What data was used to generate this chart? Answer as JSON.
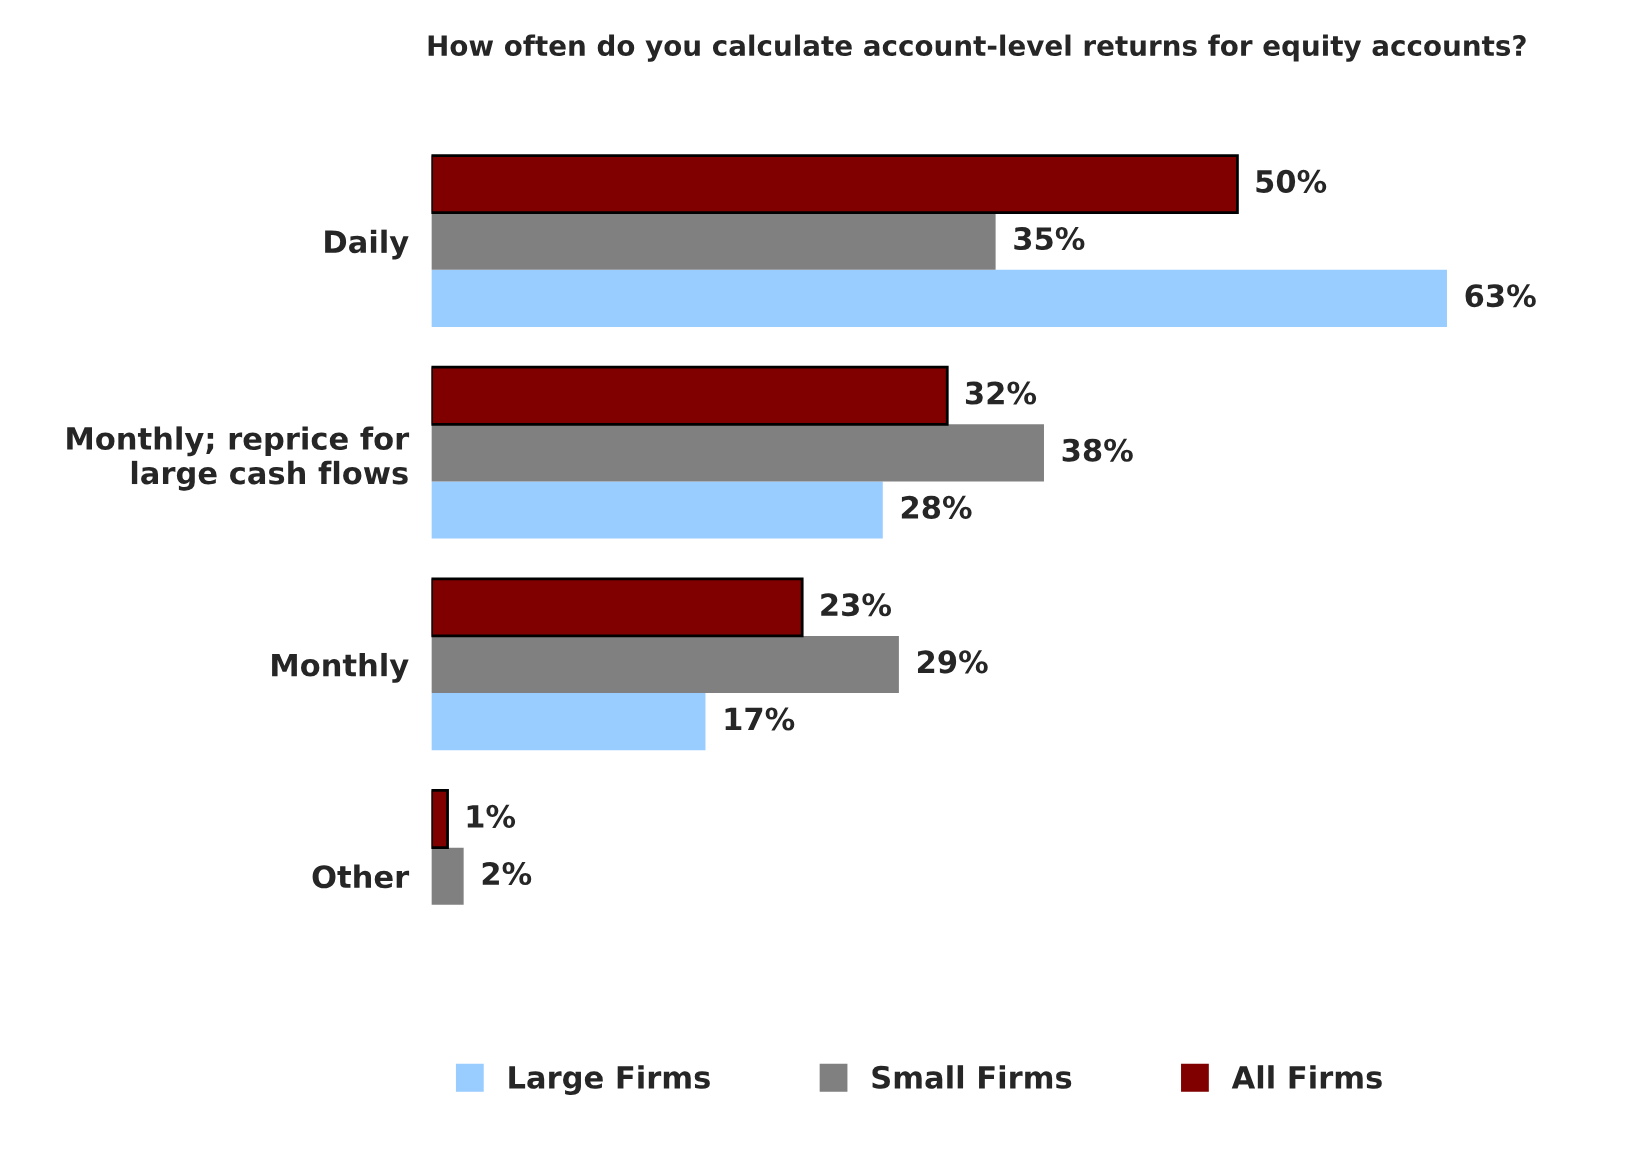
{
  "chart_data": {
    "type": "bar",
    "orientation": "horizontal",
    "title": "How often do you calculate account-level returns for equity accounts?",
    "categories": [
      "Daily",
      "Monthly; reprice for\nlarge cash flows",
      "Monthly",
      "Other"
    ],
    "series": [
      {
        "name": "Large Firms",
        "color": "#99ccff",
        "values": [
          63,
          28,
          17,
          null
        ],
        "value_labels": [
          "63%",
          "28%",
          "17%",
          null
        ]
      },
      {
        "name": "Small Firms",
        "color": "#808080",
        "values": [
          35,
          38,
          29,
          2
        ],
        "value_labels": [
          "35%",
          "38%",
          "29%",
          "2%"
        ]
      },
      {
        "name": "All Firms",
        "color": "#800000",
        "values": [
          50,
          32,
          23,
          1
        ],
        "value_labels": [
          "50%",
          "32%",
          "23%",
          "1%"
        ]
      }
    ],
    "legend": "bottom",
    "grid": false,
    "tick_labels": "y"
  }
}
